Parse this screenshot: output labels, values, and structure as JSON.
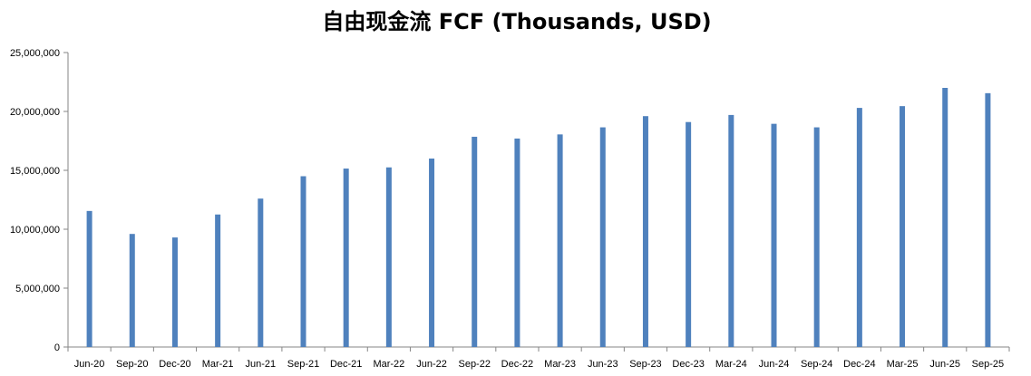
{
  "chart_data": {
    "type": "bar",
    "title": "自由现金流 FCF (Thousands, USD)",
    "xlabel": "",
    "ylabel": "",
    "ylim": [
      0,
      25000000
    ],
    "yticks": [
      0,
      5000000,
      10000000,
      15000000,
      20000000,
      25000000
    ],
    "ytick_labels": [
      "0",
      "5,000,000",
      "10,000,000",
      "15,000,000",
      "20,000,000",
      "25,000,000"
    ],
    "grid": false,
    "legend": "none",
    "bar_color": "#4F81BD",
    "categories": [
      "Jun-20",
      "Sep-20",
      "Dec-20",
      "Mar-21",
      "Jun-21",
      "Sep-21",
      "Dec-21",
      "Mar-22",
      "Jun-22",
      "Sep-22",
      "Dec-22",
      "Mar-23",
      "Jun-23",
      "Sep-23",
      "Dec-23",
      "Mar-24",
      "Jun-24",
      "Sep-24",
      "Dec-24",
      "Mar-25",
      "Jun-25",
      "Sep-25"
    ],
    "values": [
      11550000,
      9600000,
      9300000,
      11250000,
      12600000,
      14500000,
      15150000,
      15250000,
      16000000,
      17850000,
      17700000,
      18050000,
      18650000,
      19600000,
      19100000,
      19700000,
      18950000,
      18650000,
      20300000,
      20450000,
      22000000,
      21550000
    ]
  }
}
